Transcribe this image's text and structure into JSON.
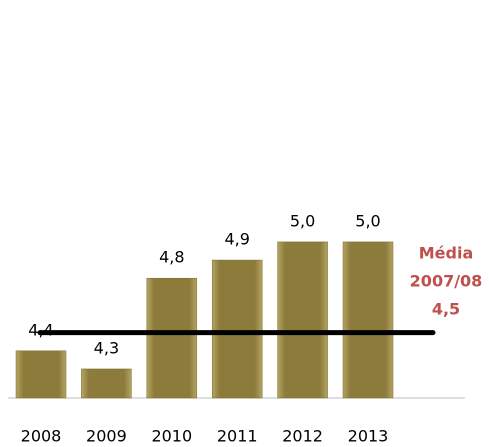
{
  "chart_data": {
    "type": "bar",
    "categories": [
      "2008",
      "2009",
      "2010",
      "2011",
      "2012",
      "2013"
    ],
    "values": [
      4.4,
      4.3,
      4.8,
      4.9,
      5.0,
      5.0
    ],
    "value_labels": [
      "4,4",
      "4,3",
      "4,8",
      "4,9",
      "5,0",
      "5,0"
    ],
    "color": "#8c7b3a",
    "ylim": [
      4.14,
      5.6
    ],
    "reference_line": {
      "value": 4.5,
      "label": "4,5",
      "color": "#000000",
      "title": [
        "Média",
        "2007/08"
      ],
      "title_color": "#c0504d"
    }
  }
}
